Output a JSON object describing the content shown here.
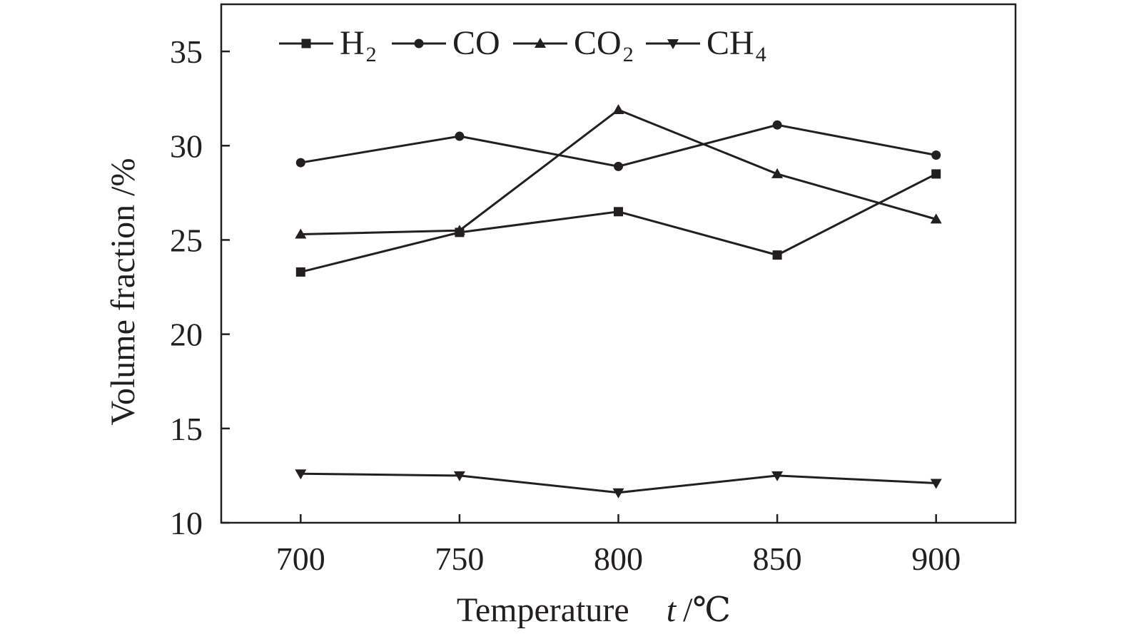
{
  "chart_data": {
    "type": "line",
    "x": [
      700,
      750,
      800,
      850,
      900
    ],
    "xlim": [
      675,
      925
    ],
    "ylim": [
      10,
      37.5
    ],
    "x_ticks": [
      "700",
      "750",
      "800",
      "850",
      "900"
    ],
    "y_ticks": [
      "10",
      "15",
      "20",
      "25",
      "30",
      "35"
    ],
    "xlabel": {
      "main": "Temperature",
      "symbol": "t",
      "unit": "/℃"
    },
    "ylabel": "Volume fraction /%",
    "legend_position": "top-left",
    "grid": false,
    "series": [
      {
        "name_base": "H",
        "name_sub": "2",
        "marker": "square",
        "values": [
          23.3,
          25.4,
          26.5,
          24.2,
          28.5
        ]
      },
      {
        "name_base": "CO",
        "name_sub": "",
        "marker": "circle",
        "values": [
          29.1,
          30.5,
          28.9,
          31.1,
          29.5
        ]
      },
      {
        "name_base": "CO",
        "name_sub": "2",
        "marker": "triangle-up",
        "values": [
          25.3,
          25.5,
          31.9,
          28.5,
          26.1
        ]
      },
      {
        "name_base": "CH",
        "name_sub": "4",
        "marker": "triangle-down",
        "values": [
          12.6,
          12.5,
          11.6,
          12.5,
          12.1
        ]
      }
    ]
  }
}
